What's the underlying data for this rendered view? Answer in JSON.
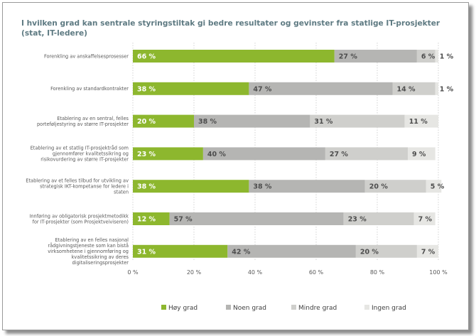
{
  "chart_data": {
    "type": "bar",
    "orientation": "horizontal",
    "stacked": "percent",
    "title": "I hvilken grad kan sentrale styringstiltak gi bedre resultater og gevinster fra statlige IT-prosjekter (stat, IT-ledere)",
    "categories": [
      [
        "Forenkling av anskaffelsesprosesser"
      ],
      [
        "Forenkling av standardkontrakter"
      ],
      [
        "Etablering av en sentral, felles",
        "porteføljestyring av større IT-prosjekter"
      ],
      [
        "Etablering av et statlig IT-prosjektråd som",
        "gjennomfører kvalitetssikring og",
        "risikovurdering av større IT-prosjekter"
      ],
      [
        "Etablering av et felles tilbud for utvikling av",
        "strategisk IKT-kompetanse for ledere i",
        "staten"
      ],
      [
        "Innføring av obligatorisk prosjektmetodikk",
        "for IT-prosjekter (som Prosjektveiviseren)"
      ],
      [
        "Etablering av en felles nasjonal",
        "rådgivningstjeneste som kan bistå",
        "virksomhetene i gjennomføring og",
        "kvalitetssikring av deres",
        "digitaliseringsprosjekter"
      ]
    ],
    "series": [
      {
        "name": "Høy grad",
        "color": "#8db72e",
        "label_color": "#ffffff",
        "values": [
          66,
          38,
          20,
          23,
          38,
          12,
          31
        ],
        "labels": [
          "66 %",
          "38 %",
          "20 %",
          "23 %",
          "38 %",
          "12 %",
          "31 %"
        ]
      },
      {
        "name": "Noen grad",
        "color": "#b5b5b3",
        "label_color": "#4d4d4d",
        "values": [
          27,
          47,
          38,
          40,
          38,
          57,
          42
        ],
        "labels": [
          "27 %",
          "47 %",
          "38 %",
          "40 %",
          "38 %",
          "57 %",
          "42 %"
        ]
      },
      {
        "name": "Mindre grad",
        "color": "#cfcfcc",
        "label_color": "#4d4d4d",
        "values": [
          6,
          14,
          31,
          27,
          20,
          23,
          20
        ],
        "labels": [
          "6 %",
          "14 %",
          "31 %",
          "27 %",
          "20 %",
          "23 %",
          "20 %"
        ]
      },
      {
        "name": "Ingen grad",
        "color": "#e6e6e3",
        "label_color": "#4d4d4d",
        "values": [
          1,
          1,
          11,
          9,
          5,
          7,
          7
        ],
        "labels": [
          "1 %",
          "1 %",
          "11 %",
          "9 %",
          "5 %",
          "7 %",
          "7 %"
        ]
      }
    ],
    "xlim": [
      0,
      100
    ],
    "xticks": [
      "0 %",
      "20 %",
      "40 %",
      "60 %",
      "80 %",
      "100 %"
    ],
    "grid": "vertical-dotted",
    "legend_position": "bottom"
  }
}
